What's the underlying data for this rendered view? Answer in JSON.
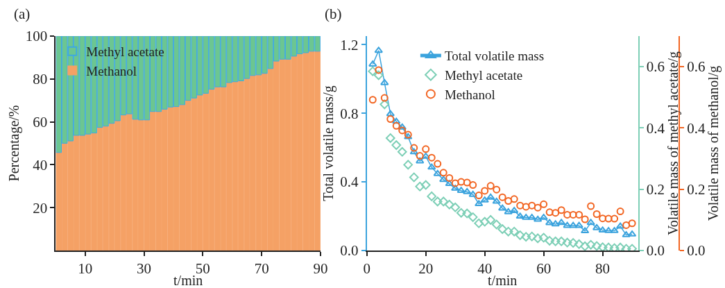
{
  "chart_data": [
    {
      "type": "bar",
      "stacked": true,
      "title": "(a)",
      "xlabel": "t/min",
      "ylabel": "Percentage/%",
      "xlim": [
        0,
        90
      ],
      "xticks": [
        10,
        30,
        50,
        70,
        90
      ],
      "ylim": [
        0,
        100
      ],
      "yticks": [
        20,
        40,
        60,
        80,
        100
      ],
      "legend": "top left",
      "x": [
        1,
        3,
        5,
        7,
        9,
        11,
        13,
        15,
        17,
        19,
        21,
        23,
        25,
        27,
        29,
        31,
        33,
        35,
        37,
        39,
        41,
        43,
        45,
        47,
        49,
        51,
        53,
        55,
        57,
        59,
        61,
        63,
        65,
        67,
        69,
        71,
        73,
        75,
        77,
        79,
        81,
        83,
        85,
        87,
        89
      ],
      "series": [
        {
          "name": "Methanol",
          "color": "#f5a165",
          "values": [
            45.7,
            50.0,
            51.1,
            53.7,
            53.7,
            54.3,
            54.8,
            57.4,
            58.0,
            59.3,
            60.5,
            63.2,
            63.7,
            61.2,
            60.9,
            60.9,
            64.8,
            64.8,
            65.9,
            66.9,
            67.1,
            68.0,
            70.0,
            71.1,
            72.5,
            73.3,
            75.2,
            76.3,
            76.3,
            78.3,
            78.7,
            79.1,
            80.2,
            81.6,
            81.9,
            82.6,
            84.8,
            88.3,
            89.2,
            89.2,
            90.6,
            91.7,
            92.2,
            92.9,
            92.9
          ]
        },
        {
          "name": "Methyl acetate",
          "color": "#6cc691",
          "values": [
            54.3,
            50.0,
            48.9,
            46.3,
            46.3,
            45.7,
            45.2,
            42.6,
            42.0,
            40.7,
            39.5,
            36.8,
            36.3,
            38.8,
            39.1,
            39.1,
            35.2,
            35.2,
            34.1,
            33.1,
            32.9,
            32.0,
            30.0,
            28.9,
            27.5,
            26.7,
            24.8,
            23.7,
            23.7,
            21.7,
            21.3,
            20.9,
            19.8,
            18.4,
            18.1,
            17.4,
            15.2,
            11.7,
            10.8,
            10.8,
            9.4,
            8.3,
            7.8,
            7.1,
            7.1
          ]
        }
      ]
    },
    {
      "type": "scatter",
      "title": "(b)",
      "xlabel": "t/min",
      "ylabel": "Total volatile mass/g",
      "y2label": "Volatile mass of methyl acetate/g",
      "y3label": "Volatile mass of methanol/g",
      "xlim": [
        0,
        92
      ],
      "xticks": [
        0,
        20,
        40,
        60,
        80
      ],
      "ylim": [
        0,
        1.25
      ],
      "yticks": [
        {
          "value": 0,
          "label": "0.0"
        },
        0.4,
        0.8,
        1.2
      ],
      "y2lim": [
        0,
        0.7
      ],
      "y2ticks": [
        {
          "value": 0,
          "label": "0.0"
        },
        0.2,
        0.4,
        0.6
      ],
      "y3lim": [
        0,
        0.7
      ],
      "y3ticks": [
        {
          "value": 0,
          "label": "0.0"
        },
        0.2,
        0.4,
        0.6
      ],
      "legend": "top",
      "x": [
        2,
        4,
        6,
        8,
        10,
        12,
        14,
        16,
        18,
        20,
        22,
        24,
        26,
        28,
        30,
        32,
        34,
        36,
        38,
        40,
        42,
        44,
        46,
        48,
        50,
        52,
        54,
        56,
        58,
        60,
        62,
        64,
        66,
        68,
        70,
        72,
        74,
        76,
        78,
        80,
        82,
        84,
        86,
        88,
        90
      ],
      "series": [
        {
          "name": "Total volatile mass",
          "type": "line",
          "marker": "triangle",
          "color": "#3ba3dd",
          "values": [
            1.085,
            1.165,
            0.977,
            0.796,
            0.752,
            0.718,
            0.662,
            0.574,
            0.521,
            0.548,
            0.485,
            0.447,
            0.413,
            0.389,
            0.362,
            0.349,
            0.342,
            0.326,
            0.272,
            0.293,
            0.31,
            0.286,
            0.246,
            0.225,
            0.232,
            0.199,
            0.192,
            0.192,
            0.181,
            0.192,
            0.161,
            0.154,
            0.162,
            0.145,
            0.145,
            0.145,
            0.114,
            0.162,
            0.132,
            0.118,
            0.115,
            0.115,
            0.141,
            0.091,
            0.095
          ]
        },
        {
          "name": "Methyl acetate",
          "type": "scatter",
          "marker": "diamond",
          "axis": "y2",
          "color": "#7dcfb6",
          "values": [
            0.585,
            0.572,
            0.477,
            0.367,
            0.344,
            0.322,
            0.28,
            0.239,
            0.209,
            0.214,
            0.177,
            0.16,
            0.16,
            0.15,
            0.141,
            0.123,
            0.121,
            0.109,
            0.089,
            0.094,
            0.1,
            0.085,
            0.07,
            0.062,
            0.062,
            0.05,
            0.045,
            0.046,
            0.04,
            0.042,
            0.032,
            0.03,
            0.03,
            0.026,
            0.025,
            0.021,
            0.014,
            0.019,
            0.015,
            0.011,
            0.01,
            0.008,
            0.01,
            0.006,
            0.006
          ]
        },
        {
          "name": "Methanol",
          "type": "scatter",
          "marker": "circle",
          "axis": "y3",
          "color": "#f26522",
          "values": [
            0.492,
            0.589,
            0.498,
            0.429,
            0.407,
            0.392,
            0.378,
            0.335,
            0.309,
            0.331,
            0.303,
            0.283,
            0.254,
            0.237,
            0.22,
            0.224,
            0.222,
            0.214,
            0.18,
            0.195,
            0.211,
            0.199,
            0.174,
            0.162,
            0.168,
            0.147,
            0.143,
            0.147,
            0.14,
            0.151,
            0.125,
            0.123,
            0.132,
            0.117,
            0.117,
            0.117,
            0.102,
            0.145,
            0.119,
            0.105,
            0.104,
            0.104,
            0.128,
            0.083,
            0.089
          ]
        }
      ]
    }
  ]
}
